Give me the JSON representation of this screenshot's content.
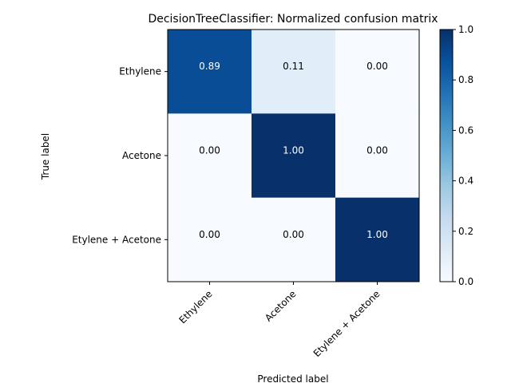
{
  "chart_data": {
    "type": "heatmap",
    "title": "DecisionTreeClassifier: Normalized confusion matrix",
    "xlabel": "Predicted label",
    "ylabel": "True label",
    "rows": [
      "Ethylene",
      "Acetone",
      "Etylene + Acetone"
    ],
    "cols": [
      "Ethylene",
      "Acetone",
      "Etylene + Acetone"
    ],
    "values": [
      [
        0.89,
        0.11,
        0.0
      ],
      [
        0.0,
        1.0,
        0.0
      ],
      [
        0.0,
        0.0,
        1.0
      ]
    ],
    "cell_labels": [
      [
        "0.89",
        "0.11",
        "0.00"
      ],
      [
        "0.00",
        "1.00",
        "0.00"
      ],
      [
        "0.00",
        "0.00",
        "1.00"
      ]
    ],
    "colormap": "Blues",
    "colorbar": {
      "range": [
        0,
        1
      ],
      "ticks": [
        "0.0",
        "0.2",
        "0.4",
        "0.6",
        "0.8",
        "1.0"
      ]
    }
  }
}
